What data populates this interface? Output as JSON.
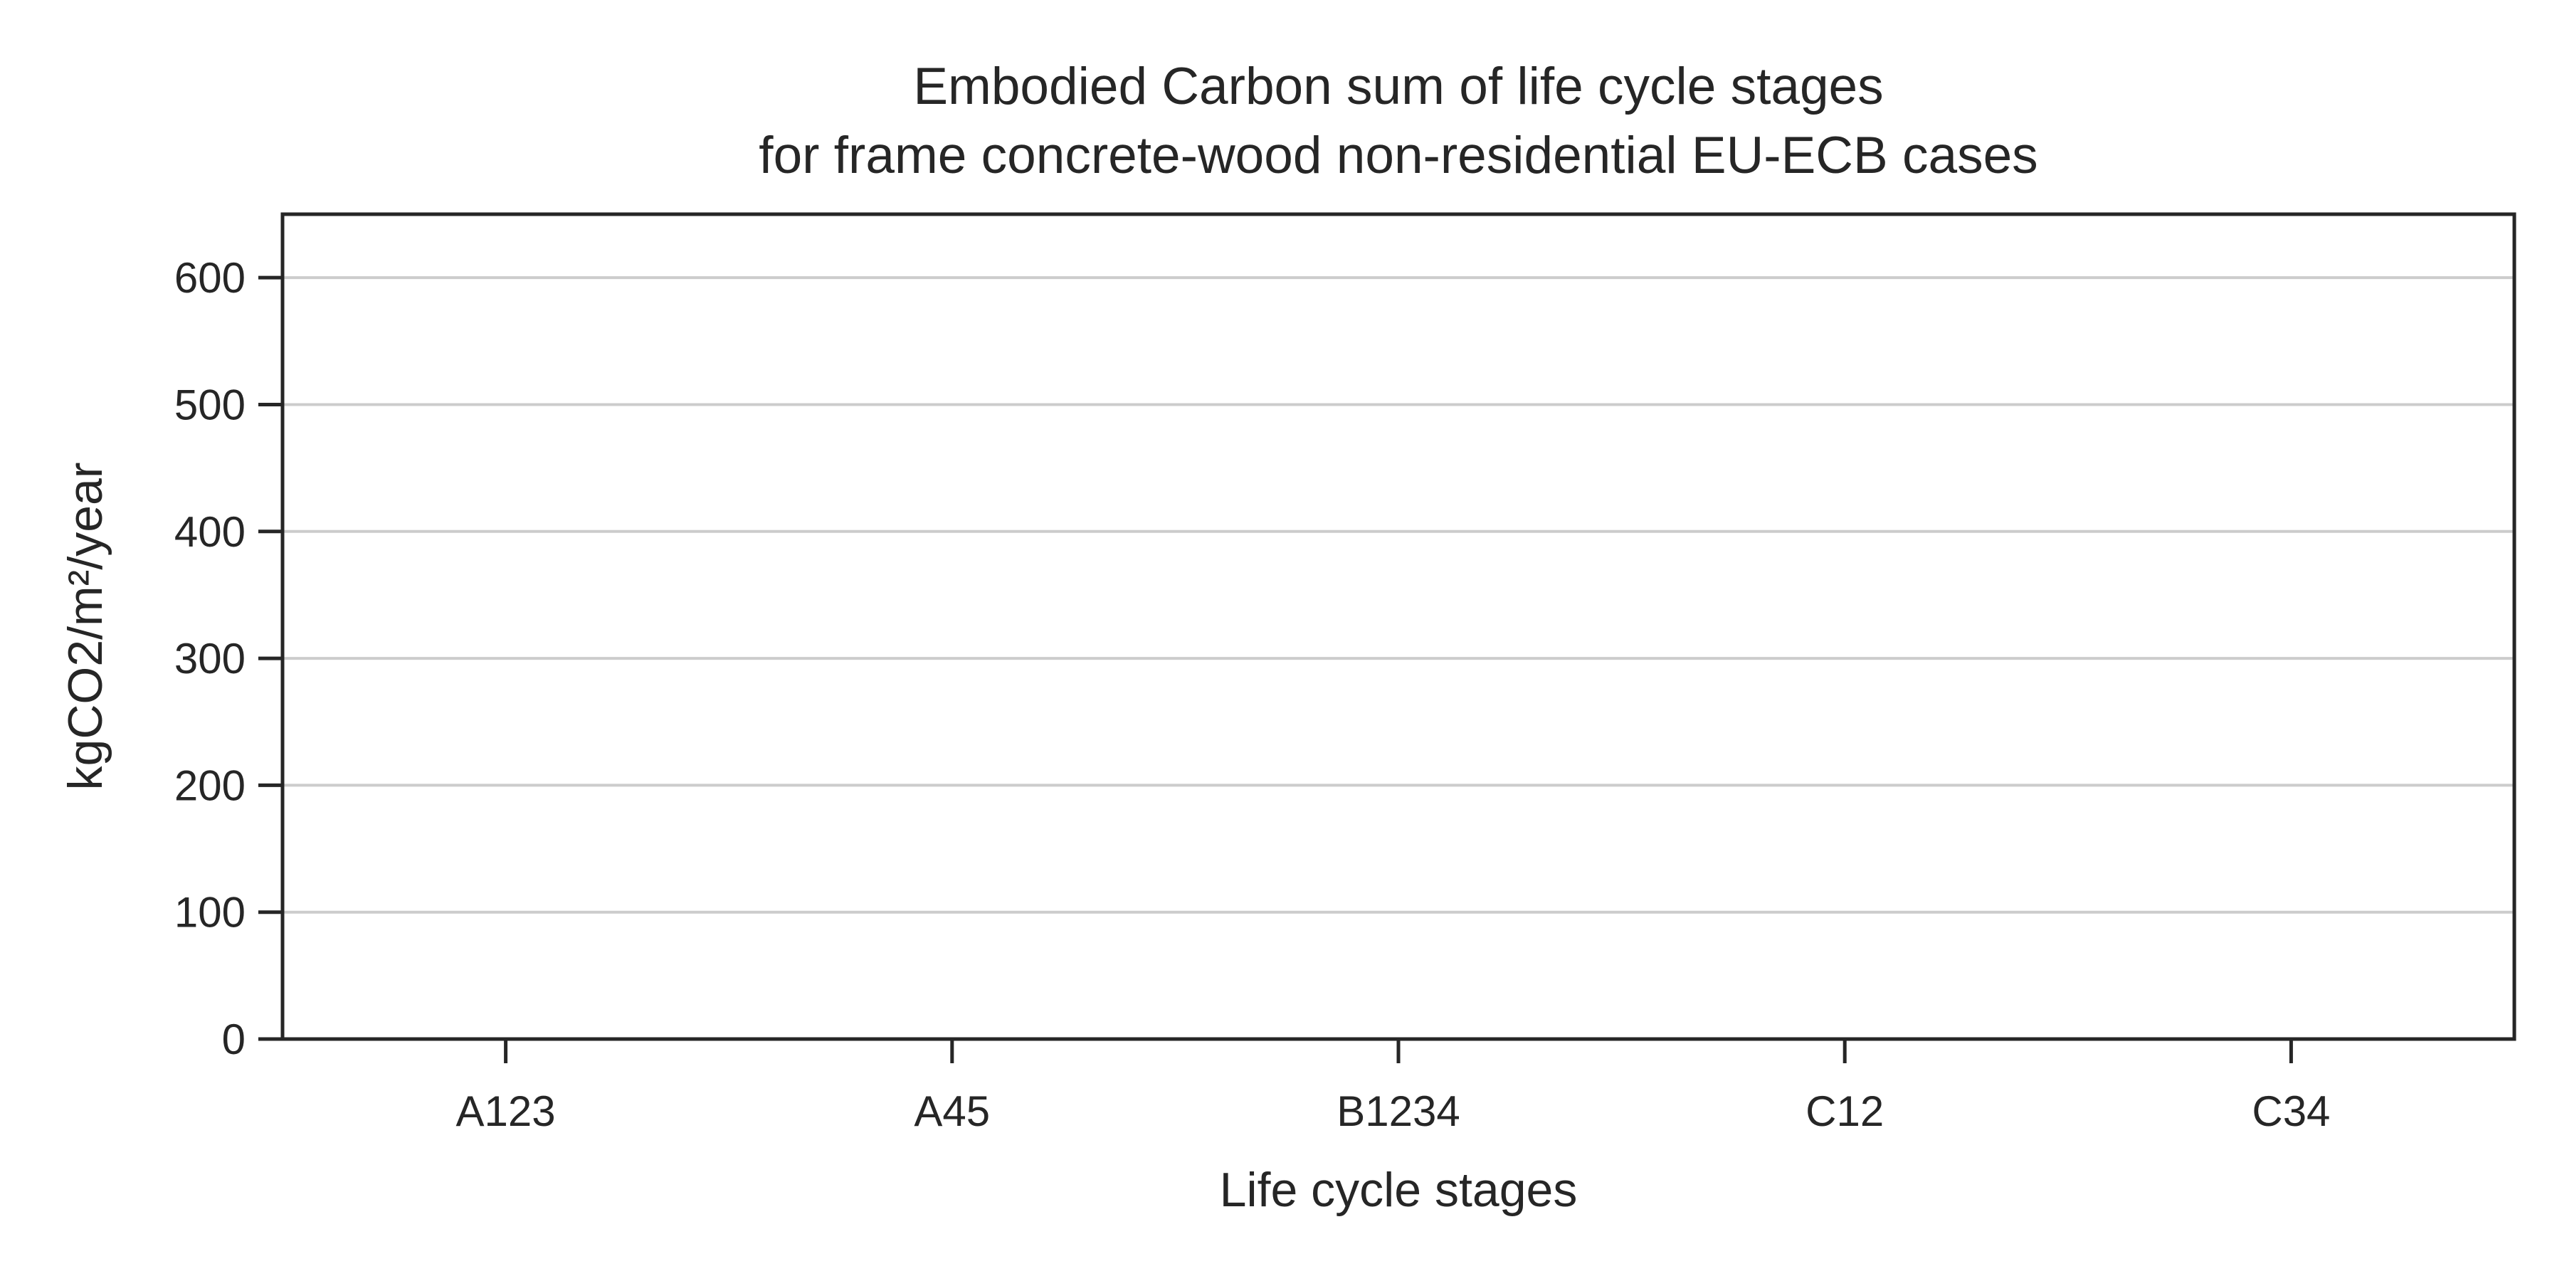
{
  "chart_data": {
    "type": "bar",
    "title_lines": [
      "Embodied Carbon sum of life cycle stages",
      "for frame concrete-wood non-residential EU-ECB cases"
    ],
    "xlabel": "Life cycle stages",
    "ylabel": "kgCO2/m²/year",
    "categories": [
      "A123",
      "A45",
      "B1234",
      "C12",
      "C34"
    ],
    "values": [
      0,
      0,
      0,
      0,
      0
    ],
    "ylim": [
      0,
      650
    ],
    "yticks": [
      0,
      100,
      200,
      300,
      400,
      500,
      600
    ],
    "grid": "horizontal",
    "legend": "none",
    "colors": {
      "axis": "#262626",
      "grid": "#cccccc",
      "background": "#ffffff"
    }
  }
}
